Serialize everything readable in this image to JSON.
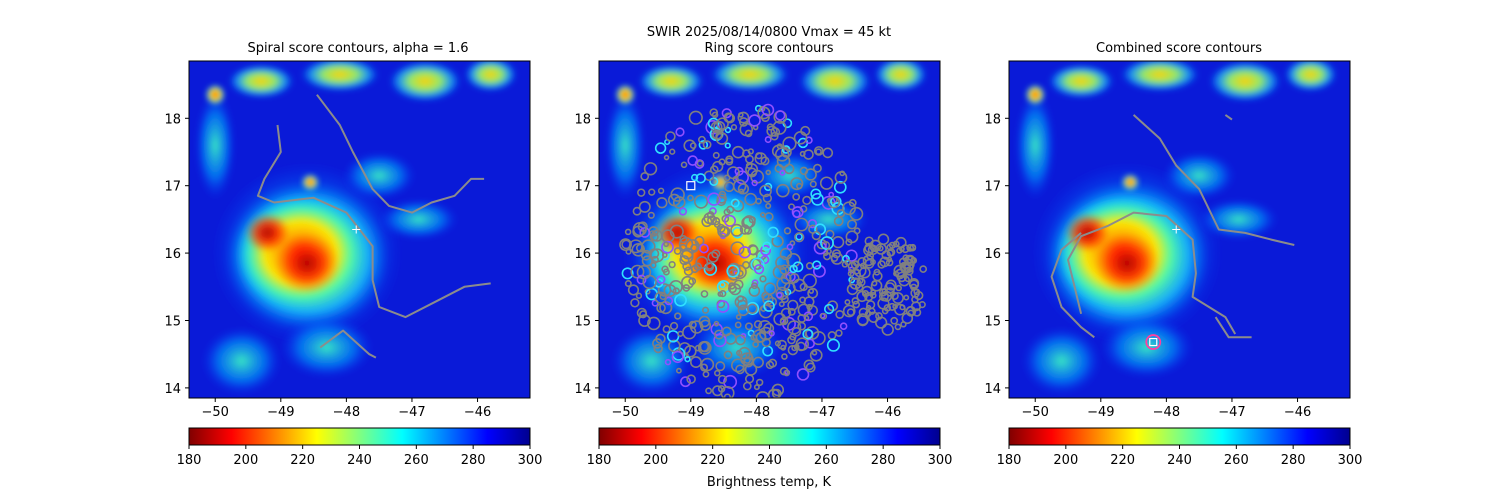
{
  "figure": {
    "suptitle": "SWIR  2025/08/14/0800    Vmax = 45 kt",
    "colorbar_label": "Brightness temp, K",
    "colormap": [
      "#800000",
      "#ff0000",
      "#ff8000",
      "#ffff00",
      "#80ff80",
      "#00ffff",
      "#0080ff",
      "#0000ff",
      "#00008f"
    ]
  },
  "chart_data": [
    {
      "type": "heatmap",
      "title": "Spiral score contours, alpha =  1.6",
      "xlabel": "",
      "ylabel": "",
      "xlim": [
        -50.4,
        -45.2
      ],
      "ylim": [
        13.85,
        18.85
      ],
      "xticks": [
        -50,
        -49,
        -48,
        -47,
        -46
      ],
      "yticks": [
        14,
        15,
        16,
        17,
        18
      ],
      "colorbar": {
        "range": [
          180,
          300
        ],
        "ticks": [
          180,
          200,
          220,
          240,
          260,
          280,
          300
        ]
      },
      "contours": [
        [
          [
            -49.05,
            17.9
          ],
          [
            -49.0,
            17.5
          ],
          [
            -49.25,
            17.1
          ],
          [
            -49.35,
            16.85
          ],
          [
            -49.1,
            16.75
          ],
          [
            -48.5,
            16.82
          ],
          [
            -48.0,
            16.6
          ],
          [
            -47.6,
            16.1
          ],
          [
            -47.6,
            15.6
          ],
          [
            -47.5,
            15.2
          ],
          [
            -47.1,
            15.05
          ],
          [
            -46.6,
            15.3
          ],
          [
            -46.2,
            15.5
          ],
          [
            -45.8,
            15.55
          ]
        ],
        [
          [
            -48.45,
            18.35
          ],
          [
            -48.1,
            17.9
          ],
          [
            -47.9,
            17.5
          ],
          [
            -47.6,
            16.95
          ],
          [
            -47.35,
            16.7
          ],
          [
            -47.0,
            16.6
          ],
          [
            -46.7,
            16.75
          ],
          [
            -46.35,
            16.85
          ],
          [
            -46.1,
            17.1
          ],
          [
            -45.9,
            17.1
          ]
        ],
        [
          [
            -48.4,
            14.6
          ],
          [
            -48.05,
            14.85
          ],
          [
            -47.65,
            14.5
          ],
          [
            -47.55,
            14.45
          ]
        ]
      ],
      "markers": [
        {
          "kind": "plus",
          "x": -47.85,
          "y": 16.35
        }
      ]
    },
    {
      "type": "heatmap",
      "title": "Ring score contours",
      "xlabel": "Brightness temp, K",
      "ylabel": "",
      "xlim": [
        -50.4,
        -45.2
      ],
      "ylim": [
        13.85,
        18.85
      ],
      "xticks": [
        -50,
        -49,
        -48,
        -47,
        -46
      ],
      "yticks": [
        14,
        15,
        16,
        17,
        18
      ],
      "colorbar": {
        "range": [
          180,
          300
        ],
        "ticks": [
          180,
          200,
          220,
          240,
          260,
          280,
          300
        ]
      },
      "ring_region": {
        "center_x": -48.2,
        "center_y": 16.0,
        "radius_x": 1.8,
        "radius_y": 2.2
      },
      "markers": [
        {
          "kind": "square",
          "x": -49.0,
          "y": 17.0
        }
      ]
    },
    {
      "type": "heatmap",
      "title": "Combined score contours",
      "xlabel": "",
      "ylabel": "",
      "xlim": [
        -50.4,
        -45.2
      ],
      "ylim": [
        13.85,
        18.85
      ],
      "xticks": [
        -50,
        -49,
        -48,
        -47,
        -46
      ],
      "yticks": [
        14,
        15,
        16,
        17,
        18
      ],
      "colorbar": {
        "range": [
          180,
          300
        ],
        "ticks": [
          180,
          200,
          220,
          240,
          260,
          280,
          300
        ]
      },
      "contours": [
        [
          [
            -49.3,
            15.1
          ],
          [
            -49.4,
            15.5
          ],
          [
            -49.5,
            15.9
          ],
          [
            -49.3,
            16.25
          ],
          [
            -48.9,
            16.4
          ],
          [
            -48.5,
            16.6
          ],
          [
            -48.0,
            16.55
          ],
          [
            -47.6,
            16.2
          ],
          [
            -47.55,
            15.7
          ],
          [
            -47.6,
            15.35
          ],
          [
            -47.35,
            15.2
          ],
          [
            -47.1,
            15.05
          ],
          [
            -46.95,
            14.8
          ]
        ],
        [
          [
            -49.1,
            14.75
          ],
          [
            -49.3,
            14.9
          ],
          [
            -49.6,
            15.2
          ],
          [
            -49.75,
            15.65
          ],
          [
            -49.6,
            16.05
          ],
          [
            -49.3,
            16.3
          ]
        ],
        [
          [
            -48.5,
            18.05
          ],
          [
            -48.1,
            17.7
          ],
          [
            -47.85,
            17.3
          ],
          [
            -47.5,
            16.95
          ],
          [
            -47.2,
            16.35
          ],
          [
            -46.8,
            16.3
          ],
          [
            -46.4,
            16.2
          ],
          [
            -46.05,
            16.12
          ]
        ],
        [
          [
            -47.25,
            15.05
          ],
          [
            -47.05,
            14.75
          ],
          [
            -46.7,
            14.75
          ]
        ],
        [
          [
            -47.1,
            18.05
          ],
          [
            -47.0,
            17.98
          ]
        ]
      ],
      "markers": [
        {
          "kind": "plus",
          "x": -47.85,
          "y": 16.35
        },
        {
          "kind": "circled-square",
          "x": -48.2,
          "y": 14.68
        }
      ]
    }
  ]
}
